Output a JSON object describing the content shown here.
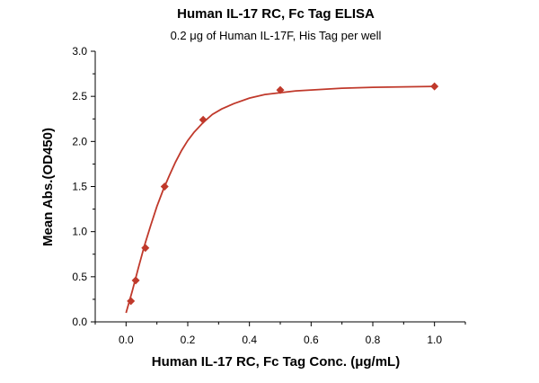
{
  "chart_data": {
    "type": "scatter",
    "title": "Human IL-17 RC, Fc Tag ELISA",
    "subtitle": "0.2 μg of Human IL-17F, His Tag per well",
    "xlabel": "Human IL-17 RC, Fc Tag Conc. (μg/mL)",
    "ylabel": "Mean Abs.(OD450)",
    "xlim": [
      -0.1,
      1.1
    ],
    "ylim": [
      0,
      3.0
    ],
    "xticks": [
      0.0,
      0.2,
      0.4,
      0.6,
      0.8,
      1.0
    ],
    "xtick_labels": [
      "0.0",
      "0.2",
      "0.4",
      "0.6",
      "0.8",
      "1.0"
    ],
    "yticks": [
      0.0,
      0.5,
      1.0,
      1.5,
      2.0,
      2.5,
      3.0
    ],
    "ytick_labels": [
      "0.0",
      "0.5",
      "1.0",
      "1.5",
      "2.0",
      "2.5",
      "3.0"
    ],
    "grid": false,
    "marker": "diamond",
    "color": "#c0392b",
    "series": [
      {
        "x": [
          0.0156,
          0.0313,
          0.0625,
          0.125,
          0.25,
          0.5,
          1.0
        ],
        "y": [
          0.23,
          0.46,
          0.82,
          1.5,
          2.24,
          2.57,
          2.61
        ]
      }
    ],
    "fit_curve": {
      "x": [
        0.0,
        0.02,
        0.04,
        0.06,
        0.08,
        0.1,
        0.12,
        0.14,
        0.16,
        0.18,
        0.2,
        0.22,
        0.25,
        0.28,
        0.31,
        0.35,
        0.4,
        0.45,
        0.5,
        0.55,
        0.6,
        0.7,
        0.8,
        0.9,
        1.0
      ],
      "y": [
        0.1,
        0.34,
        0.6,
        0.85,
        1.07,
        1.28,
        1.46,
        1.62,
        1.77,
        1.9,
        2.01,
        2.1,
        2.21,
        2.3,
        2.36,
        2.42,
        2.48,
        2.52,
        2.54,
        2.56,
        2.57,
        2.59,
        2.6,
        2.605,
        2.61
      ]
    }
  }
}
